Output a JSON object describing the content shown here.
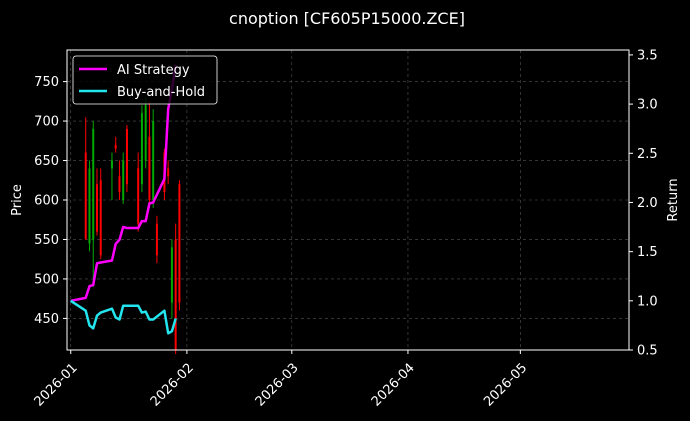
{
  "chart_data": {
    "type": "line",
    "title": "cnoption [CF605P15000.ZCE]",
    "xlabel": "",
    "ylabel": "Price",
    "y2label": "Return",
    "x_range": [
      "2025-12-31",
      "2026-05-30"
    ],
    "ylim": [
      410,
      790
    ],
    "y2lim": [
      0.5,
      3.55
    ],
    "x_ticks": [
      {
        "date": "2026-01-01",
        "label": "2026-01"
      },
      {
        "date": "2026-02-01",
        "label": "2026-02"
      },
      {
        "date": "2026-03-01",
        "label": "2026-03"
      },
      {
        "date": "2026-04-01",
        "label": "2026-04"
      },
      {
        "date": "2026-05-01",
        "label": "2026-05"
      }
    ],
    "y_ticks": [
      450,
      500,
      550,
      600,
      650,
      700,
      750
    ],
    "y2_ticks": [
      0.5,
      1.0,
      1.5,
      2.0,
      2.5,
      3.0,
      3.5
    ],
    "y2_tick_labels": [
      "0.5",
      "1.0",
      "1.5",
      "2.0",
      "2.5",
      "3.0",
      "3.5"
    ],
    "grid": true,
    "legend_position": "top-left",
    "up_color": "#00aa00",
    "down_color": "#ff0000",
    "candles": [
      {
        "date": "2026-01-05",
        "open": 660,
        "high": 705,
        "low": 550,
        "close": 550
      },
      {
        "date": "2026-01-06",
        "open": 545,
        "high": 650,
        "low": 535,
        "close": 640
      },
      {
        "date": "2026-01-07",
        "open": 550,
        "high": 700,
        "low": 490,
        "close": 690
      },
      {
        "date": "2026-01-08",
        "open": 620,
        "high": 640,
        "low": 555,
        "close": 560
      },
      {
        "date": "2026-01-09",
        "open": 625,
        "high": 640,
        "low": 525,
        "close": 530
      },
      {
        "date": "2026-01-12",
        "open": 640,
        "high": 660,
        "low": 600,
        "close": 650
      },
      {
        "date": "2026-01-13",
        "open": 670,
        "high": 680,
        "low": 660,
        "close": 665
      },
      {
        "date": "2026-01-14",
        "open": 630,
        "high": 650,
        "low": 600,
        "close": 610
      },
      {
        "date": "2026-01-15",
        "open": 600,
        "high": 660,
        "low": 595,
        "close": 650
      },
      {
        "date": "2026-01-16",
        "open": 690,
        "high": 695,
        "low": 610,
        "close": 620
      },
      {
        "date": "2026-01-19",
        "open": 640,
        "high": 660,
        "low": 560,
        "close": 570
      },
      {
        "date": "2026-01-20",
        "open": 620,
        "high": 720,
        "low": 610,
        "close": 710
      },
      {
        "date": "2026-01-21",
        "open": 650,
        "high": 730,
        "low": 640,
        "close": 720
      },
      {
        "date": "2026-01-22",
        "open": 680,
        "high": 725,
        "low": 590,
        "close": 600
      },
      {
        "date": "2026-01-23",
        "open": 600,
        "high": 715,
        "low": 590,
        "close": 700
      },
      {
        "date": "2026-01-24",
        "open": 570,
        "high": 580,
        "low": 520,
        "close": 530
      },
      {
        "date": "2026-01-26",
        "open": 660,
        "high": 665,
        "low": 600,
        "close": 610
      },
      {
        "date": "2026-01-27",
        "open": 640,
        "high": 650,
        "low": 620,
        "close": 630
      },
      {
        "date": "2026-01-28",
        "open": 470,
        "high": 550,
        "low": 450,
        "close": 540
      },
      {
        "date": "2026-01-29",
        "open": 550,
        "high": 570,
        "low": 405,
        "close": 410
      },
      {
        "date": "2026-01-30",
        "open": 620,
        "high": 625,
        "low": 460,
        "close": 470
      }
    ],
    "series": [
      {
        "name": "AI Strategy",
        "color": "#ff00ff",
        "axis": "right",
        "x": [
          "2026-01-01",
          "2026-01-05",
          "2026-01-06",
          "2026-01-07",
          "2026-01-08",
          "2026-01-09",
          "2026-01-12",
          "2026-01-13",
          "2026-01-14",
          "2026-01-15",
          "2026-01-16",
          "2026-01-19",
          "2026-01-20",
          "2026-01-21",
          "2026-01-22",
          "2026-01-23",
          "2026-01-26",
          "2026-01-27",
          "2026-01-28",
          "2026-01-29"
        ],
        "y": [
          1.0,
          1.03,
          1.15,
          1.16,
          1.38,
          1.39,
          1.41,
          1.58,
          1.62,
          1.75,
          1.74,
          1.74,
          1.81,
          1.81,
          1.99,
          2.0,
          2.24,
          2.95,
          3.15,
          3.4
        ]
      },
      {
        "name": "Buy-and-Hold",
        "color": "#22e5ee",
        "axis": "right",
        "x": [
          "2026-01-01",
          "2026-01-05",
          "2026-01-06",
          "2026-01-07",
          "2026-01-08",
          "2026-01-09",
          "2026-01-12",
          "2026-01-13",
          "2026-01-14",
          "2026-01-15",
          "2026-01-16",
          "2026-01-19",
          "2026-01-20",
          "2026-01-21",
          "2026-01-22",
          "2026-01-23",
          "2026-01-26",
          "2026-01-27",
          "2026-01-28",
          "2026-01-29"
        ],
        "y": [
          1.0,
          0.9,
          0.75,
          0.72,
          0.85,
          0.88,
          0.92,
          0.83,
          0.81,
          0.95,
          0.95,
          0.95,
          0.88,
          0.89,
          0.81,
          0.81,
          0.9,
          0.67,
          0.69,
          0.82
        ]
      }
    ]
  }
}
